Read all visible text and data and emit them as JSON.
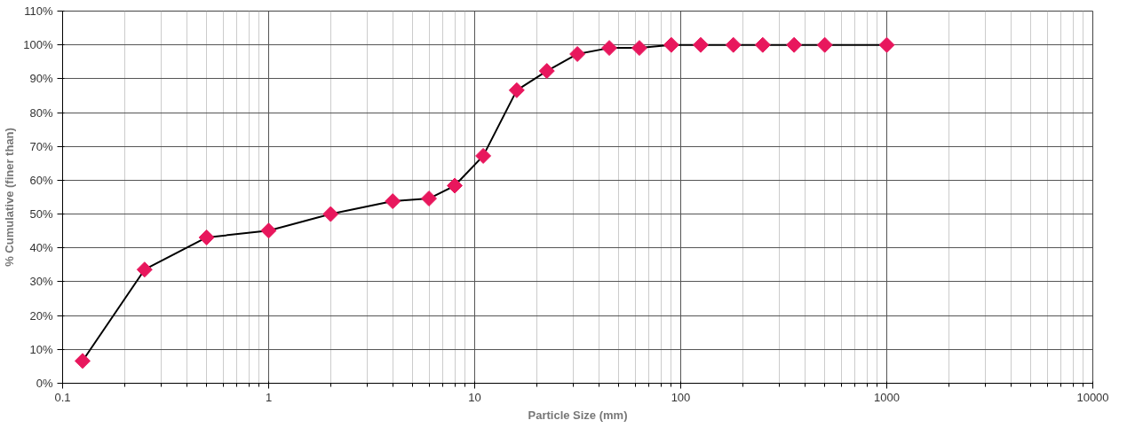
{
  "chart_data": {
    "type": "line",
    "xlabel": "Particle Size (mm)",
    "ylabel": "% Cumulative (finer than)",
    "log": "x",
    "xlim": [
      0.1,
      10000
    ],
    "xticks": [
      0.1,
      1,
      10,
      100,
      1000,
      10000
    ],
    "ylim": [
      0,
      110
    ],
    "yticks": [
      {
        "value": 0,
        "label": "0%"
      },
      {
        "value": 10,
        "label": "10%"
      },
      {
        "value": 20,
        "label": "20%"
      },
      {
        "value": 30,
        "label": "30%"
      },
      {
        "value": 40,
        "label": "40%"
      },
      {
        "value": 50,
        "label": "50%"
      },
      {
        "value": 60,
        "label": "60%"
      },
      {
        "value": 70,
        "label": "70%"
      },
      {
        "value": 80,
        "label": "80%"
      },
      {
        "value": 90,
        "label": "90%"
      },
      {
        "value": 100,
        "label": "100%"
      },
      {
        "value": 110,
        "label": "110%"
      }
    ],
    "grid": true,
    "marker": "diamond",
    "line_style": "solid",
    "x": [
      0.125,
      0.25,
      0.5,
      1,
      2,
      4,
      6,
      8,
      11,
      16,
      22.4,
      31.5,
      45,
      63,
      90,
      125,
      180,
      250,
      355,
      500,
      1000
    ],
    "series": [
      {
        "color": "#e8175d",
        "values": [
          6.6,
          33.6,
          43.1,
          45.1,
          50.0,
          53.8,
          54.6,
          58.4,
          67.2,
          86.6,
          92.3,
          97.3,
          99.1,
          99.1,
          100,
          100,
          100,
          100,
          100,
          100,
          100
        ]
      }
    ]
  }
}
